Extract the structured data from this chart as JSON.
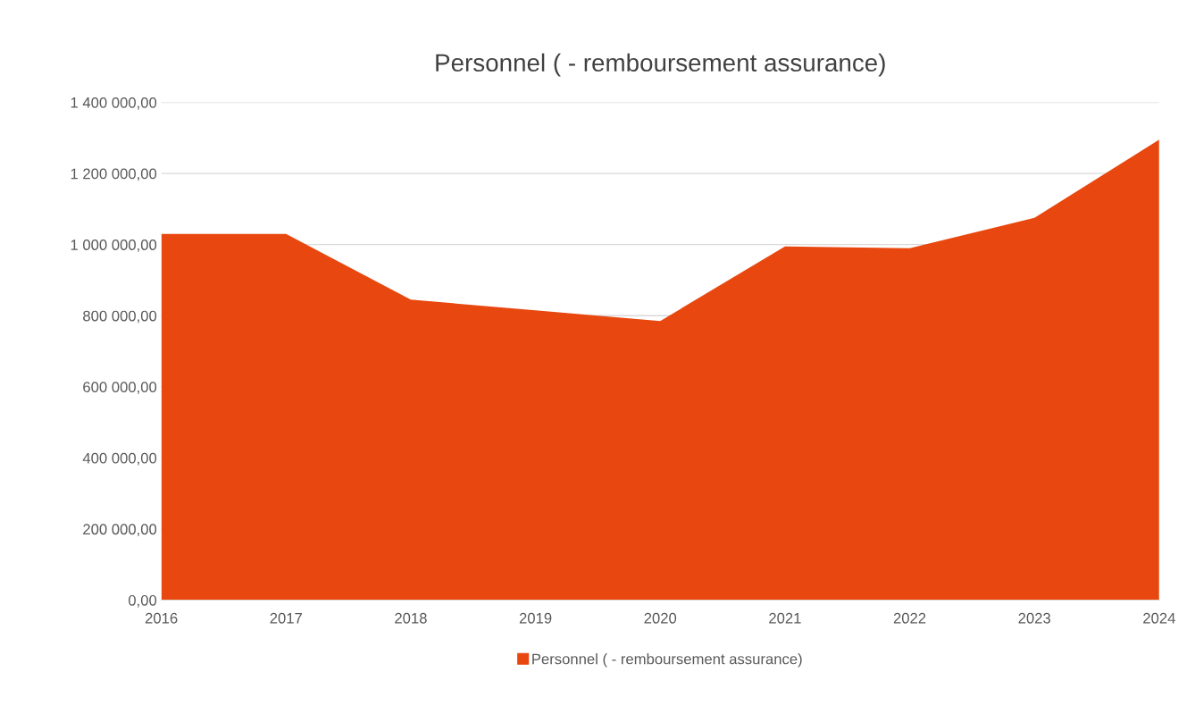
{
  "chart_data": {
    "type": "area",
    "title": "Personnel ( - remboursement assurance)",
    "categories": [
      "2016",
      "2017",
      "2018",
      "2019",
      "2020",
      "2021",
      "2022",
      "2023",
      "2024"
    ],
    "series": [
      {
        "name": "Personnel ( - remboursement assurance)",
        "color": "#e8480f",
        "values": [
          1030000,
          1030000,
          845000,
          815000,
          785000,
          995000,
          990000,
          1075000,
          1295000
        ]
      }
    ],
    "ylim": [
      0,
      1400000
    ],
    "yticks": [
      {
        "value": 0,
        "label": "0,00"
      },
      {
        "value": 200000,
        "label": "200 000,00"
      },
      {
        "value": 400000,
        "label": "400 000,00"
      },
      {
        "value": 600000,
        "label": "600 000,00"
      },
      {
        "value": 800000,
        "label": "800 000,00"
      },
      {
        "value": 1000000,
        "label": "1 000 000,00"
      },
      {
        "value": 1200000,
        "label": "1 200 000,00"
      },
      {
        "value": 1400000,
        "label": "1 400 000,00"
      }
    ],
    "grid": "y",
    "legend": "bottom"
  }
}
